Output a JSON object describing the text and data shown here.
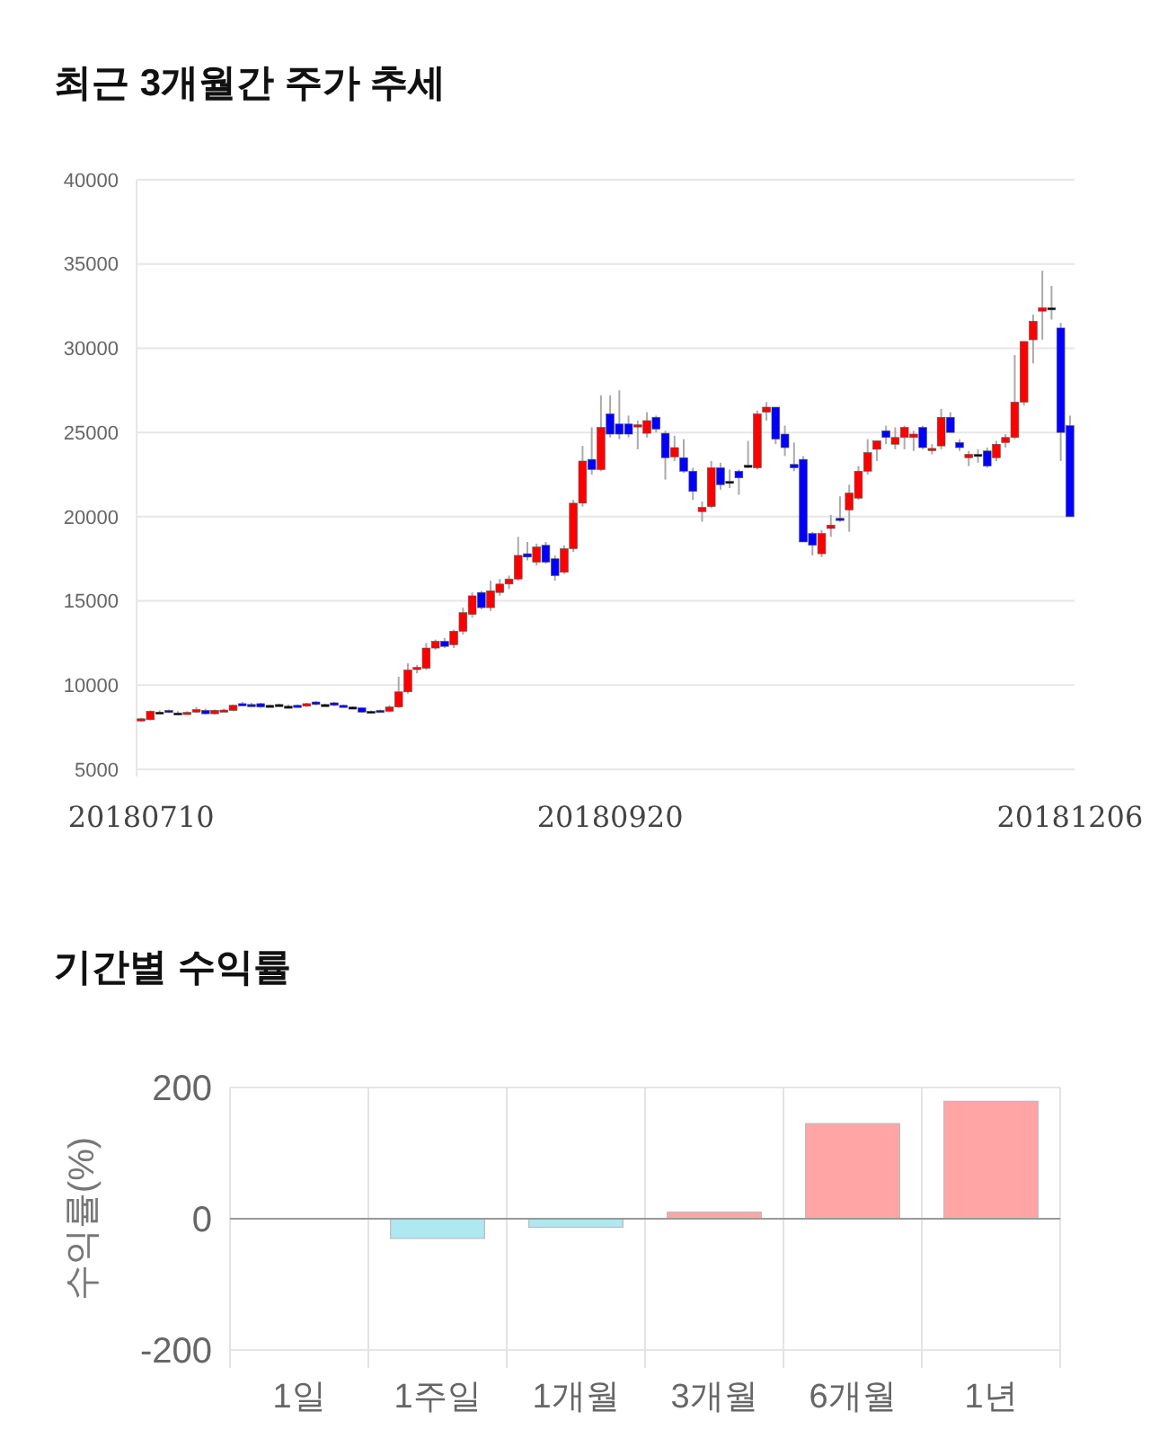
{
  "chart_data": [
    {
      "type": "candlestick",
      "title": "최근 3개월간 주가 추세",
      "categories": [
        "20180710",
        null,
        null,
        null,
        null,
        null,
        null,
        null,
        null,
        null,
        null,
        null,
        null,
        null,
        null,
        null,
        null,
        null,
        null,
        null,
        null,
        null,
        null,
        null,
        null,
        null,
        null,
        null,
        null,
        null,
        null,
        null,
        null,
        null,
        null,
        null,
        null,
        null,
        null,
        null,
        null,
        null,
        null,
        null,
        null,
        null,
        null,
        null,
        null,
        null,
        null,
        "20180920",
        null,
        null,
        null,
        null,
        null,
        null,
        null,
        null,
        null,
        null,
        null,
        null,
        null,
        null,
        null,
        null,
        null,
        null,
        null,
        null,
        null,
        null,
        null,
        null,
        null,
        null,
        null,
        null,
        null,
        null,
        null,
        null,
        null,
        null,
        null,
        null,
        null,
        null,
        null,
        null,
        null,
        null,
        null,
        null,
        null,
        null,
        null,
        null,
        null,
        "20181206"
      ],
      "ohlc": [
        [
          7900,
          8050,
          7850,
          8000
        ],
        [
          7950,
          8500,
          7900,
          8450
        ],
        [
          8400,
          8500,
          8350,
          8400
        ],
        [
          8500,
          8550,
          8350,
          8400
        ],
        [
          8350,
          8450,
          8300,
          8350
        ],
        [
          8350,
          8450,
          8250,
          8380
        ],
        [
          8400,
          8700,
          8350,
          8550
        ],
        [
          8500,
          8600,
          8250,
          8300
        ],
        [
          8300,
          8550,
          8250,
          8500
        ],
        [
          8500,
          8600,
          8450,
          8520
        ],
        [
          8500,
          8850,
          8450,
          8800
        ],
        [
          8900,
          9000,
          8800,
          8880
        ],
        [
          8850,
          8950,
          8800,
          8830
        ],
        [
          8900,
          8950,
          8650,
          8700
        ],
        [
          8800,
          8850,
          8750,
          8800
        ],
        [
          8850,
          8900,
          8800,
          8850
        ],
        [
          8750,
          8850,
          8700,
          8750
        ],
        [
          8800,
          8850,
          8700,
          8780
        ],
        [
          8750,
          8950,
          8700,
          8900
        ],
        [
          9000,
          9050,
          8800,
          8850
        ],
        [
          8850,
          8900,
          8800,
          8850
        ],
        [
          8950,
          9000,
          8750,
          8800
        ],
        [
          8800,
          8850,
          8700,
          8780
        ],
        [
          8700,
          8750,
          8650,
          8700
        ],
        [
          8650,
          8700,
          8350,
          8400
        ],
        [
          8450,
          8500,
          8350,
          8450
        ],
        [
          8500,
          8550,
          8400,
          8480
        ],
        [
          8450,
          8800,
          8400,
          8700
        ],
        [
          8700,
          10500,
          8650,
          9600
        ],
        [
          9600,
          11300,
          9500,
          10900
        ],
        [
          11000,
          11200,
          10700,
          11050
        ],
        [
          11000,
          12500,
          10900,
          12200
        ],
        [
          12200,
          12700,
          12100,
          12600
        ],
        [
          12600,
          12800,
          12200,
          12300
        ],
        [
          12400,
          13300,
          12200,
          13200
        ],
        [
          13200,
          14600,
          13000,
          14300
        ],
        [
          14200,
          15500,
          14000,
          15300
        ],
        [
          15500,
          15600,
          14500,
          14600
        ],
        [
          14600,
          16200,
          14400,
          15600
        ],
        [
          15500,
          16300,
          15300,
          16000
        ],
        [
          16000,
          16500,
          15700,
          16300
        ],
        [
          16300,
          18800,
          16200,
          17700
        ],
        [
          17800,
          18500,
          17400,
          17600
        ],
        [
          17300,
          18400,
          17100,
          18200
        ],
        [
          18300,
          18500,
          17200,
          17300
        ],
        [
          17500,
          17700,
          16200,
          16500
        ],
        [
          16700,
          18300,
          16600,
          18100
        ],
        [
          18100,
          21000,
          17900,
          20800
        ],
        [
          20800,
          24200,
          20600,
          23300
        ],
        [
          23400,
          25300,
          22500,
          22800
        ],
        [
          22800,
          27200,
          22700,
          25300
        ],
        [
          26100,
          27200,
          24700,
          24900
        ],
        [
          25500,
          27500,
          24600,
          24900
        ],
        [
          25500,
          26000,
          24700,
          24900
        ],
        [
          25400,
          25700,
          24000,
          25450
        ],
        [
          24950,
          26200,
          24700,
          25700
        ],
        [
          25900,
          26000,
          25000,
          25200
        ],
        [
          24950,
          25100,
          22200,
          23500
        ],
        [
          23550,
          24800,
          23300,
          24100
        ],
        [
          23500,
          24600,
          22600,
          22700
        ],
        [
          22700,
          22900,
          21000,
          21500
        ],
        [
          20300,
          20900,
          19700,
          20550
        ],
        [
          20600,
          23300,
          20500,
          22900
        ],
        [
          22900,
          23200,
          21600,
          21900
        ],
        [
          22100,
          22800,
          21700,
          22100
        ],
        [
          22700,
          22800,
          21300,
          22300
        ],
        [
          23050,
          24500,
          22900,
          23050
        ],
        [
          22900,
          26300,
          22800,
          26100
        ],
        [
          26200,
          26800,
          25700,
          26500
        ],
        [
          26500,
          26500,
          24300,
          24600
        ],
        [
          24900,
          25400,
          23600,
          24100
        ],
        [
          23100,
          24400,
          22700,
          22900
        ],
        [
          23400,
          23600,
          18500,
          18500
        ],
        [
          19000,
          19100,
          17700,
          18300
        ],
        [
          17800,
          19200,
          17600,
          19000
        ],
        [
          19300,
          20100,
          18800,
          19500
        ],
        [
          19900,
          21200,
          19700,
          19800
        ],
        [
          20400,
          21900,
          19100,
          21400
        ],
        [
          21100,
          23000,
          21000,
          22700
        ],
        [
          22700,
          24600,
          22500,
          23800
        ],
        [
          24000,
          24500,
          23300,
          24500
        ],
        [
          25100,
          25400,
          24300,
          24700
        ],
        [
          24300,
          25300,
          24000,
          24700
        ],
        [
          24700,
          25400,
          24000,
          25300
        ],
        [
          24700,
          25100,
          23900,
          24900
        ],
        [
          25300,
          25400,
          24000,
          24100
        ],
        [
          23950,
          24300,
          23700,
          24050
        ],
        [
          24200,
          26400,
          24000,
          25900
        ],
        [
          25900,
          26200,
          25000,
          25000
        ],
        [
          24400,
          24600,
          23900,
          24100
        ],
        [
          23500,
          23900,
          23000,
          23700
        ],
        [
          23700,
          24000,
          23200,
          23700
        ],
        [
          23900,
          24100,
          22900,
          23000
        ],
        [
          23500,
          24500,
          23300,
          24300
        ],
        [
          24400,
          24900,
          24100,
          24700
        ],
        [
          24700,
          29600,
          24600,
          26800
        ],
        [
          26800,
          30400,
          26600,
          30400
        ],
        [
          30500,
          32000,
          29100,
          31600
        ],
        [
          32200,
          34600,
          30500,
          32400
        ],
        [
          32400,
          33700,
          31700,
          32400
        ],
        [
          31200,
          31500,
          23300,
          25000
        ],
        [
          25400,
          26000,
          20000,
          20000
        ]
      ],
      "colors": [
        "#ff0000",
        "#ff0000",
        "#000000",
        "#0000ff",
        "#000000",
        "#ff0000",
        "#ff0000",
        "#0000ff",
        "#ff0000",
        "#ff0000",
        "#ff0000",
        "#0000ff",
        "#0000ff",
        "#0000ff",
        "#000000",
        "#000000",
        "#000000",
        "#0000ff",
        "#ff0000",
        "#0000ff",
        "#000000",
        "#0000ff",
        "#0000ff",
        "#000000",
        "#0000ff",
        "#000000",
        "#0000ff",
        "#ff0000",
        "#ff0000",
        "#ff0000",
        "#ff0000",
        "#ff0000",
        "#ff0000",
        "#0000ff",
        "#ff0000",
        "#ff0000",
        "#ff0000",
        "#0000ff",
        "#ff0000",
        "#ff0000",
        "#ff0000",
        "#ff0000",
        "#0000ff",
        "#ff0000",
        "#0000ff",
        "#0000ff",
        "#ff0000",
        "#ff0000",
        "#ff0000",
        "#0000ff",
        "#ff0000",
        "#0000ff",
        "#0000ff",
        "#0000ff",
        "#ff0000",
        "#ff0000",
        "#0000ff",
        "#0000ff",
        "#ff0000",
        "#0000ff",
        "#0000ff",
        "#ff0000",
        "#ff0000",
        "#0000ff",
        "#000000",
        "#0000ff",
        "#000000",
        "#ff0000",
        "#ff0000",
        "#0000ff",
        "#0000ff",
        "#0000ff",
        "#0000ff",
        "#0000ff",
        "#ff0000",
        "#ff0000",
        "#0000ff",
        "#ff0000",
        "#ff0000",
        "#ff0000",
        "#ff0000",
        "#0000ff",
        "#ff0000",
        "#ff0000",
        "#ff0000",
        "#0000ff",
        "#ff0000",
        "#ff0000",
        "#0000ff",
        "#0000ff",
        "#ff0000",
        "#000000",
        "#0000ff",
        "#ff0000",
        "#ff0000",
        "#ff0000",
        "#ff0000",
        "#ff0000",
        "#ff0000",
        "#000000",
        "#0000ff",
        "#0000ff"
      ],
      "ylim": [
        5000,
        40000
      ],
      "yticks": [
        5000,
        10000,
        15000,
        20000,
        25000,
        30000,
        35000,
        40000
      ],
      "grid": "y"
    },
    {
      "type": "bar",
      "title": "기간별 수익률",
      "ylabel": "수익률(%)",
      "categories": [
        "1일",
        "1주일",
        "1개월",
        "3개월",
        "6개월",
        "1년"
      ],
      "values": [
        0,
        -30,
        -13,
        10,
        145,
        179
      ],
      "colors": [
        "#ffa5a5",
        "#aee8f0",
        "#aee8f0",
        "#ffa5a5",
        "#ffa5a5",
        "#ffa5a5"
      ],
      "ylim": [
        -200,
        200
      ],
      "yticks": [
        -200,
        0,
        200
      ],
      "grid": true
    }
  ]
}
